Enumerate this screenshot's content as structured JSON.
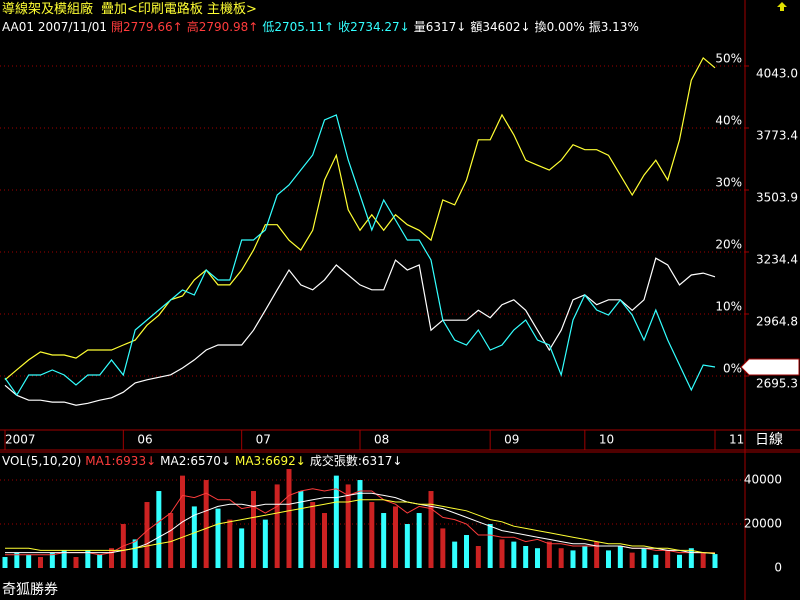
{
  "header": {
    "title": "導線架及模組廠",
    "overlay": "疊加<印刷電路板 主機板>",
    "quote": [
      {
        "text": "AA01 2007/11/01",
        "color": "#ffffff"
      },
      {
        "text": "開2779.66↑",
        "color": "#ff3c3c"
      },
      {
        "text": "高2790.98↑",
        "color": "#ff3c3c"
      },
      {
        "text": "低2705.11↑",
        "color": "#33ffff"
      },
      {
        "text": "收2734.27↓",
        "color": "#33ffff"
      },
      {
        "text": "量6317↓",
        "color": "#ffffff"
      },
      {
        "text": "額34602↓",
        "color": "#ffffff"
      },
      {
        "text": "換0.00%",
        "color": "#ffffff"
      },
      {
        "text": "振3.13%",
        "color": "#ffffff"
      }
    ]
  },
  "chart_data": [
    {
      "type": "line",
      "categories": [
        "2007",
        null,
        null,
        null,
        null,
        null,
        null,
        null,
        null,
        null,
        "06",
        null,
        null,
        null,
        null,
        null,
        null,
        null,
        null,
        null,
        "07",
        null,
        null,
        null,
        null,
        null,
        null,
        null,
        null,
        null,
        "08",
        null,
        null,
        null,
        null,
        null,
        null,
        null,
        null,
        null,
        null,
        "09",
        null,
        null,
        null,
        null,
        null,
        null,
        null,
        "10",
        null,
        null,
        null,
        null,
        null,
        null,
        null,
        null,
        null,
        null,
        "11"
      ],
      "period_label": "日線",
      "series": [
        {
          "color": "#ffffff",
          "values": [
            -1.5,
            -3.1,
            -3.9,
            -3.9,
            -4.2,
            -4.2,
            -4.7,
            -4.4,
            -3.9,
            -3.5,
            -2.6,
            -1.1,
            -0.6,
            -0.2,
            0.2,
            1.3,
            2.6,
            4.2,
            5.0,
            5.0,
            5.0,
            7.4,
            10.6,
            13.9,
            17.1,
            14.7,
            13.9,
            15.5,
            17.9,
            16.3,
            14.7,
            13.9,
            13.9,
            18.7,
            17.1,
            17.9,
            7.4,
            9.0,
            9.0,
            9.0,
            10.6,
            9.4,
            11.5,
            12.3,
            10.6,
            7.4,
            4.2,
            7.4,
            12.3,
            13.1,
            11.5,
            12.3,
            12.3,
            10.6,
            12.3,
            19.0,
            17.9,
            14.7,
            16.3,
            16.6,
            16.0
          ]
        },
        {
          "color": "#ffff33",
          "values": [
            -0.6,
            1.0,
            2.6,
            3.9,
            3.4,
            3.4,
            2.9,
            4.2,
            4.2,
            4.2,
            5.0,
            5.8,
            8.2,
            9.8,
            12.3,
            12.9,
            15.5,
            17.1,
            14.7,
            14.7,
            17.1,
            20.3,
            24.4,
            24.4,
            21.9,
            20.3,
            23.5,
            31.6,
            35.6,
            26.8,
            23.5,
            26.0,
            23.5,
            26.0,
            24.4,
            23.5,
            21.9,
            28.4,
            27.6,
            31.6,
            38.1,
            38.1,
            42.1,
            38.9,
            34.8,
            34.0,
            33.2,
            34.8,
            37.3,
            36.5,
            36.5,
            35.6,
            32.4,
            29.2,
            32.4,
            34.8,
            31.6,
            38.1,
            47.7,
            51.3,
            49.7
          ]
        },
        {
          "color": "#33ffff",
          "axis": "y2",
          "values": [
            2686.6,
            2612.7,
            2699.6,
            2699.6,
            2721.4,
            2699.6,
            2656.2,
            2699.6,
            2699.6,
            2764.9,
            2699.6,
            2895.3,
            2938.8,
            2982.3,
            3025.8,
            3069.2,
            3047.5,
            3156.1,
            3112.6,
            3112.6,
            3286.5,
            3286.5,
            3330.0,
            3482.1,
            3525.6,
            3590.8,
            3656.0,
            3808.2,
            3829.9,
            3634.3,
            3482.1,
            3330.0,
            3460.4,
            3373.5,
            3286.5,
            3286.5,
            3199.6,
            2938.8,
            2851.9,
            2830.1,
            2895.3,
            2808.3,
            2830.1,
            2895.3,
            2938.8,
            2851.9,
            2830.1,
            2699.6,
            2938.8,
            3047.5,
            2982.3,
            2960.5,
            3025.8,
            2960.5,
            2851.9,
            2982.3,
            2851.9,
            2743.1,
            2634.4,
            2743.1,
            2734.27
          ]
        }
      ],
      "ylim": [
        -8.7,
        58.7
      ],
      "yticks": [
        {
          "value": 0,
          "label": "0%"
        },
        {
          "value": 10,
          "label": "10%"
        },
        {
          "value": 20,
          "label": "20%"
        },
        {
          "value": 30,
          "label": "30%"
        },
        {
          "value": 40,
          "label": "40%"
        },
        {
          "value": 50,
          "label": "50%"
        }
      ],
      "y2lim": [
        2460.5,
        4277.7
      ],
      "y2ticks": [
        {
          "value": 2695.3,
          "label": "2695.3"
        },
        {
          "value": 2964.8,
          "label": "2964.8"
        },
        {
          "value": 3234.4,
          "label": "3234.4"
        },
        {
          "value": 3503.9,
          "label": "3503.9"
        },
        {
          "value": 3773.4,
          "label": "3773.4"
        },
        {
          "value": 4043.0,
          "label": "4043.0"
        }
      ],
      "last_price": {
        "value": 2734.3,
        "label": "2734.3"
      },
      "grid": true
    },
    {
      "type": "bar",
      "title": "VOL(5,10,20)",
      "volume_label": "成交張數:6317↓",
      "values": [
        5000,
        7000,
        6000,
        5000,
        7000,
        8000,
        5000,
        8000,
        6000,
        9000,
        20000,
        13000,
        30000,
        35000,
        25000,
        42000,
        28000,
        40000,
        27000,
        22000,
        18000,
        35000,
        22000,
        38000,
        45000,
        35000,
        30000,
        25000,
        42000,
        38000,
        40000,
        30000,
        25000,
        28000,
        20000,
        25000,
        35000,
        18000,
        12000,
        15000,
        10000,
        20000,
        13000,
        12000,
        10000,
        9000,
        12000,
        9000,
        8000,
        10000,
        12000,
        8000,
        10000,
        7000,
        9000,
        6000,
        8000,
        6000,
        9000,
        7000,
        6317
      ],
      "colors": [
        "#33ffff",
        "#33ffff",
        "#33ffff",
        "#cc2222",
        "#33ffff",
        "#33ffff",
        "#cc2222",
        "#33ffff",
        "#33ffff",
        "#cc2222",
        "#cc2222",
        "#33ffff",
        "#cc2222",
        "#33ffff",
        "#cc2222",
        "#cc2222",
        "#33ffff",
        "#cc2222",
        "#33ffff",
        "#cc2222",
        "#33ffff",
        "#cc2222",
        "#33ffff",
        "#cc2222",
        "#cc2222",
        "#33ffff",
        "#cc2222",
        "#cc2222",
        "#33ffff",
        "#cc2222",
        "#33ffff",
        "#cc2222",
        "#33ffff",
        "#cc2222",
        "#33ffff",
        "#33ffff",
        "#cc2222",
        "#cc2222",
        "#33ffff",
        "#33ffff",
        "#cc2222",
        "#33ffff",
        "#cc2222",
        "#33ffff",
        "#33ffff",
        "#33ffff",
        "#cc2222",
        "#cc2222",
        "#33ffff",
        "#33ffff",
        "#cc2222",
        "#33ffff",
        "#33ffff",
        "#cc2222",
        "#33ffff",
        "#33ffff",
        "#cc2222",
        "#33ffff",
        "#33ffff",
        "#cc2222",
        "#33ffff"
      ],
      "series": [
        {
          "name": "MA1:6933↓",
          "color": "#ff3c3c",
          "values": [
            6000,
            6000,
            6000,
            6000,
            6000,
            7000,
            7000,
            7000,
            6000,
            7000,
            10000,
            12000,
            17000,
            21000,
            25000,
            33000,
            32000,
            34000,
            31000,
            31000,
            27000,
            28000,
            25000,
            28000,
            33000,
            35000,
            36000,
            35000,
            36000,
            33000,
            35000,
            35000,
            31000,
            29000,
            25000,
            28000,
            27000,
            23000,
            22000,
            20000,
            15000,
            15000,
            14000,
            14000,
            12000,
            13000,
            11000,
            11000,
            10000,
            10000,
            10000,
            10000,
            10000,
            9000,
            9000,
            8000,
            8000,
            7000,
            7000,
            7000,
            6933
          ]
        },
        {
          "name": "MA2:6570↓",
          "color": "#ffffff",
          "values": [
            7000,
            7000,
            7000,
            7000,
            7000,
            7000,
            7000,
            7000,
            7000,
            7000,
            8000,
            9000,
            11000,
            14000,
            17000,
            21000,
            24000,
            26000,
            28000,
            29000,
            29000,
            28000,
            29000,
            29000,
            29000,
            30000,
            31000,
            32000,
            32000,
            33000,
            34000,
            34000,
            33000,
            32000,
            30000,
            29000,
            28000,
            27000,
            25000,
            23000,
            21000,
            19000,
            17000,
            16000,
            15000,
            14000,
            13000,
            12000,
            11000,
            11000,
            10000,
            10000,
            10000,
            9000,
            9000,
            9000,
            8000,
            8000,
            7000,
            7000,
            6570
          ]
        },
        {
          "name": "MA3:6692↓",
          "color": "#ffff33",
          "values": [
            9000,
            9000,
            9000,
            8000,
            8000,
            8000,
            8000,
            8000,
            8000,
            8000,
            8000,
            9000,
            10000,
            11000,
            12000,
            14000,
            16000,
            18000,
            20000,
            21000,
            22000,
            23000,
            24000,
            25000,
            26000,
            27000,
            28000,
            29000,
            30000,
            30000,
            31000,
            31000,
            31000,
            30000,
            30000,
            29000,
            29000,
            28000,
            27000,
            26000,
            24000,
            22000,
            21000,
            19000,
            18000,
            17000,
            16000,
            15000,
            14000,
            13000,
            12000,
            11000,
            11000,
            10000,
            10000,
            9000,
            9000,
            8000,
            8000,
            7000,
            6692
          ]
        }
      ],
      "ylim": [
        0,
        48200
      ],
      "yticks": [
        0,
        20000,
        40000
      ],
      "grid": true
    }
  ],
  "footer": {
    "watermark": "奇狐勝券"
  }
}
